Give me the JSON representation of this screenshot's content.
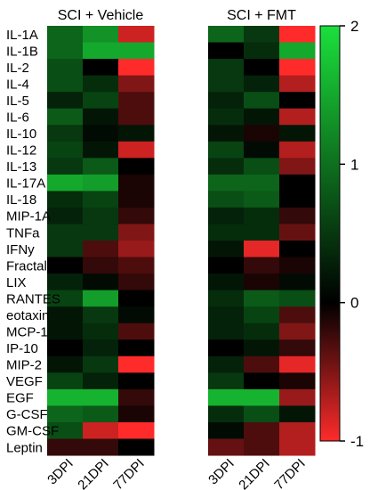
{
  "chart_data": {
    "type": "heatmap",
    "panels": [
      {
        "title": "SCI + Vehicle",
        "columns": [
          "3DPI",
          "21DPI",
          "77DPI"
        ],
        "values": [
          [
            0.9,
            1.3,
            -0.8
          ],
          [
            0.9,
            1.5,
            1.5
          ],
          [
            0.7,
            0.0,
            -1.0
          ],
          [
            0.7,
            0.4,
            -0.5
          ],
          [
            0.3,
            0.6,
            -0.3
          ],
          [
            0.8,
            0.2,
            -0.3
          ],
          [
            0.5,
            0.1,
            0.2
          ],
          [
            0.6,
            0.2,
            -0.8
          ],
          [
            0.5,
            0.8,
            0.0
          ],
          [
            1.5,
            1.4,
            -0.1
          ],
          [
            0.4,
            0.6,
            -0.1
          ],
          [
            0.3,
            0.5,
            -0.2
          ],
          [
            0.5,
            0.5,
            -0.5
          ],
          [
            0.5,
            -0.3,
            -0.6
          ],
          [
            0.0,
            -0.2,
            -0.3
          ],
          [
            0.3,
            0.1,
            -0.2
          ],
          [
            0.6,
            1.4,
            0.0
          ],
          [
            0.2,
            0.5,
            0.1
          ],
          [
            0.2,
            0.4,
            -0.3
          ],
          [
            0.0,
            0.3,
            0.0
          ],
          [
            0.2,
            0.5,
            -1.0
          ],
          [
            0.6,
            0.3,
            0.0
          ],
          [
            1.6,
            1.6,
            -0.2
          ],
          [
            0.9,
            0.8,
            -0.1
          ],
          [
            0.7,
            -0.8,
            -1.0
          ],
          [
            -0.2,
            -0.2,
            0.0
          ]
        ]
      },
      {
        "title": "SCI + FMT",
        "columns": [
          "3DPI",
          "21DPI",
          "77DPI"
        ],
        "values": [
          [
            0.9,
            0.5,
            -1.0
          ],
          [
            0.0,
            0.4,
            1.5
          ],
          [
            0.5,
            0.0,
            -1.0
          ],
          [
            0.5,
            0.3,
            -0.7
          ],
          [
            0.3,
            0.7,
            0.0
          ],
          [
            0.4,
            0.2,
            -0.7
          ],
          [
            0.2,
            -0.1,
            0.2
          ],
          [
            0.6,
            0.1,
            -0.7
          ],
          [
            0.4,
            0.7,
            -0.5
          ],
          [
            0.9,
            0.9,
            0.0
          ],
          [
            0.7,
            0.8,
            0.0
          ],
          [
            0.3,
            0.4,
            -0.2
          ],
          [
            0.4,
            0.4,
            -0.4
          ],
          [
            0.2,
            -0.9,
            0.0
          ],
          [
            0.0,
            -0.2,
            -0.1
          ],
          [
            0.2,
            -0.1,
            0.1
          ],
          [
            0.4,
            0.8,
            0.7
          ],
          [
            0.3,
            0.6,
            -0.3
          ],
          [
            0.3,
            0.4,
            -0.5
          ],
          [
            0.0,
            0.2,
            -0.2
          ],
          [
            0.3,
            -0.3,
            -0.9
          ],
          [
            0.5,
            0.0,
            -0.1
          ],
          [
            1.6,
            1.6,
            -0.6
          ],
          [
            0.4,
            0.7,
            0.2
          ],
          [
            0.1,
            -0.3,
            -0.7
          ],
          [
            -0.4,
            -0.3,
            -0.7
          ]
        ]
      }
    ],
    "rows": [
      "IL-1A",
      "IL-1B",
      "IL-2",
      "IL-4",
      "IL-5",
      "IL-6",
      "IL-10",
      "IL-12",
      "IL-13",
      "IL-17A",
      "IL-18",
      "MIP-1A",
      "TNFa",
      "IFNy",
      "Fractalkine",
      "LIX",
      "RANTES",
      "eotaxin",
      "MCP-1",
      "IP-10",
      "MIP-2",
      "VEGF",
      "EGF",
      "G-CSF",
      "GM-CSF",
      "Leptin"
    ],
    "color_scale": {
      "min": -1,
      "max": 2,
      "ticks": [
        2,
        1,
        0,
        -1
      ],
      "colors": {
        "low": "#ff2b2b",
        "mid": "#000000",
        "high": "#1be03c"
      }
    }
  }
}
